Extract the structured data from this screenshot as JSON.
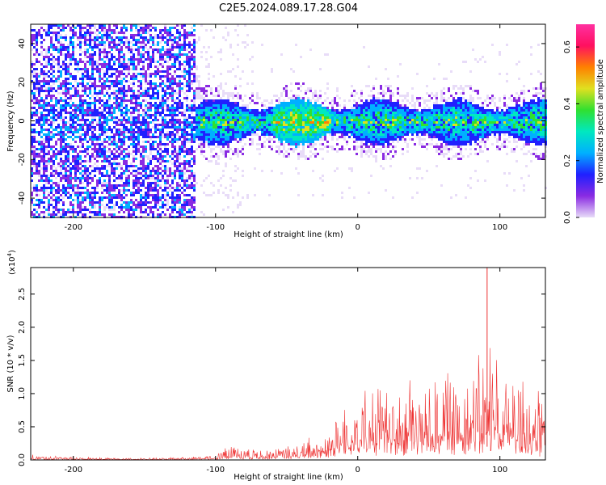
{
  "title": "C2E5.2024.089.17.28.G04",
  "chart_data": [
    {
      "type": "heatmap",
      "xlabel": "Height of straight line (km)",
      "ylabel": "Frequency (Hz)",
      "xlim": [
        -230,
        132
      ],
      "ylim": [
        -50,
        50
      ],
      "x_ticks": [
        -200,
        -100,
        0,
        100
      ],
      "x_tick_labels": [
        "-200",
        "-100",
        "0",
        "100"
      ],
      "y_ticks": [
        -40,
        -20,
        0,
        20,
        40
      ],
      "y_tick_labels": [
        "-40",
        "-20",
        "0",
        "20",
        "40"
      ],
      "grid": false,
      "colorbar": {
        "label": "Normalized spectral amplitude",
        "range": [
          0.0,
          0.68
        ],
        "ticks": [
          0.0,
          0.2,
          0.4,
          0.6
        ],
        "tick_labels": [
          "0.0",
          "0.2",
          "0.4",
          "0.6"
        ],
        "colors": [
          "#e8dcf8",
          "#8a2be2",
          "#2020ff",
          "#00b0ff",
          "#00e8c0",
          "#30e030",
          "#e0e020",
          "#ff8000",
          "#ff1060",
          "#ff30a0"
        ]
      },
      "features": {
        "broadband_noise_region_x": [
          -230,
          -115
        ],
        "narrow_band_center_hz": 0,
        "narrow_band_halfwidth_hz": 8
      }
    },
    {
      "type": "line",
      "xlabel": "Height of straight line (km)",
      "ylabel": "SNR (10 * v/v)",
      "y_multiplier_label": "(x10",
      "y_multiplier_exponent": "4",
      "xlim": [
        -230,
        132
      ],
      "ylim": [
        0,
        2.9
      ],
      "x_ticks": [
        -200,
        -100,
        0,
        100
      ],
      "x_tick_labels": [
        "-200",
        "-100",
        "0",
        "100"
      ],
      "y_ticks": [
        0.0,
        0.5,
        1.0,
        1.5,
        2.0,
        2.5
      ],
      "y_tick_labels": [
        "0.0",
        "0.5",
        "1.0",
        "1.5",
        "2.0",
        "2.5"
      ],
      "grid": false,
      "series": [
        {
          "color": "#ee3333",
          "x": [
            -230,
            -200,
            -150,
            -120,
            -100,
            -90,
            -80,
            -70,
            -60,
            -50,
            -40,
            -30,
            -20,
            -10,
            0,
            10,
            20,
            30,
            40,
            50,
            60,
            70,
            80,
            90,
            91,
            100,
            110,
            120,
            132
          ],
          "peak_envelope": [
            0.08,
            0.05,
            0.03,
            0.04,
            0.1,
            0.25,
            0.2,
            0.18,
            0.16,
            0.22,
            0.25,
            0.42,
            0.55,
            0.95,
            1.05,
            1.12,
            1.15,
            1.2,
            1.25,
            1.3,
            1.38,
            1.45,
            1.62,
            1.55,
            2.9,
            1.4,
            1.42,
            1.3,
            0.85
          ]
        }
      ]
    }
  ]
}
